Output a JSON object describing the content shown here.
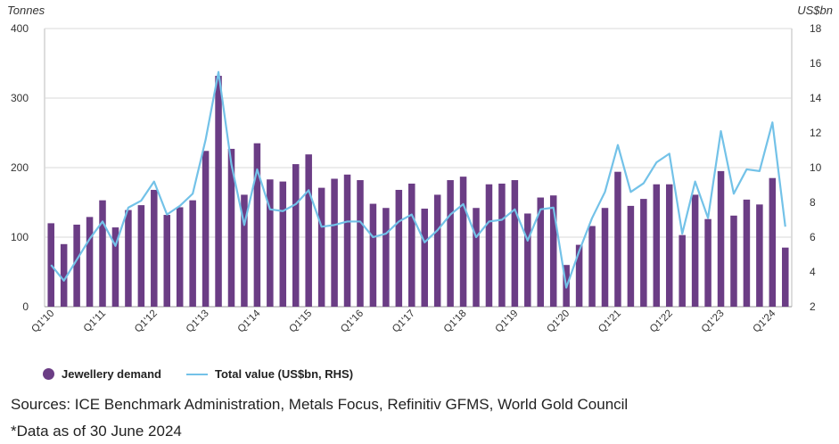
{
  "chart_data": {
    "type": "bar+line",
    "left_axis_label": "Tonnes",
    "right_axis_label": "US$bn",
    "left_ylim": [
      0,
      400
    ],
    "left_ticks": [
      0,
      100,
      200,
      300,
      400
    ],
    "right_ylim": [
      2,
      18
    ],
    "right_ticks": [
      2,
      4,
      6,
      8,
      10,
      12,
      14,
      16,
      18
    ],
    "grid": "horizontal",
    "legend_position": "bottom-left",
    "categories": [
      "Q1'10",
      "Q2'10",
      "Q3'10",
      "Q4'10",
      "Q1'11",
      "Q2'11",
      "Q3'11",
      "Q4'11",
      "Q1'12",
      "Q2'12",
      "Q3'12",
      "Q4'12",
      "Q1'13",
      "Q2'13",
      "Q3'13",
      "Q4'13",
      "Q1'14",
      "Q2'14",
      "Q3'14",
      "Q4'14",
      "Q1'15",
      "Q2'15",
      "Q3'15",
      "Q4'15",
      "Q1'16",
      "Q2'16",
      "Q3'16",
      "Q4'16",
      "Q1'17",
      "Q2'17",
      "Q3'17",
      "Q4'17",
      "Q1'18",
      "Q2'18",
      "Q3'18",
      "Q4'18",
      "Q1'19",
      "Q2'19",
      "Q3'19",
      "Q4'19",
      "Q1'20",
      "Q2'20",
      "Q3'20",
      "Q4'20",
      "Q1'21",
      "Q2'21",
      "Q3'21",
      "Q4'21",
      "Q1'22",
      "Q2'22",
      "Q3'22",
      "Q4'22",
      "Q1'23",
      "Q2'23",
      "Q3'23",
      "Q4'23",
      "Q1'24",
      "Q2'24"
    ],
    "x_tick_labels": [
      "Q1'10",
      "Q1'11",
      "Q1'12",
      "Q1'13",
      "Q1'14",
      "Q1'15",
      "Q1'16",
      "Q1'17",
      "Q1'18",
      "Q1'19",
      "Q1'20",
      "Q1'21",
      "Q1'22",
      "Q1'23",
      "Q1'24"
    ],
    "series": [
      {
        "name": "Jewellery demand",
        "type": "bar",
        "axis": "left",
        "color": "#6b3d85",
        "values": [
          120,
          90,
          118,
          129,
          153,
          114,
          139,
          146,
          168,
          132,
          143,
          153,
          224,
          332,
          227,
          161,
          235,
          183,
          180,
          205,
          219,
          171,
          184,
          190,
          182,
          148,
          142,
          168,
          177,
          141,
          161,
          182,
          187,
          142,
          176,
          177,
          182,
          134,
          157,
          160,
          60,
          89,
          116,
          142,
          194,
          145,
          155,
          176,
          176,
          103,
          161,
          126,
          195,
          131,
          154,
          147,
          185,
          85
        ]
      },
      {
        "name": "Total value (US$bn, RHS)",
        "type": "line",
        "axis": "right",
        "color": "#73c2e8",
        "values": [
          4.4,
          3.5,
          4.7,
          5.9,
          6.9,
          5.5,
          7.7,
          8.1,
          9.2,
          7.3,
          7.8,
          8.5,
          11.6,
          15.5,
          10.2,
          6.7,
          9.9,
          7.6,
          7.5,
          7.9,
          8.7,
          6.6,
          6.7,
          6.9,
          6.9,
          6.0,
          6.2,
          6.9,
          7.3,
          5.7,
          6.4,
          7.3,
          7.9,
          6.0,
          6.9,
          7.0,
          7.6,
          5.8,
          7.6,
          7.7,
          3.1,
          5.2,
          7.1,
          8.6,
          11.3,
          8.6,
          9.1,
          10.3,
          10.8,
          6.2,
          9.2,
          7.1,
          12.1,
          8.5,
          9.9,
          9.8,
          12.6,
          6.6
        ]
      }
    ]
  },
  "legend": {
    "bar_label": "Jewellery demand",
    "line_label": "Total value (US$bn, RHS)"
  },
  "footer": {
    "sources": "Sources: ICE Benchmark Administration, Metals Focus, Refinitiv GFMS, World Gold Council",
    "footnote": "*Data as of 30 June 2024"
  }
}
